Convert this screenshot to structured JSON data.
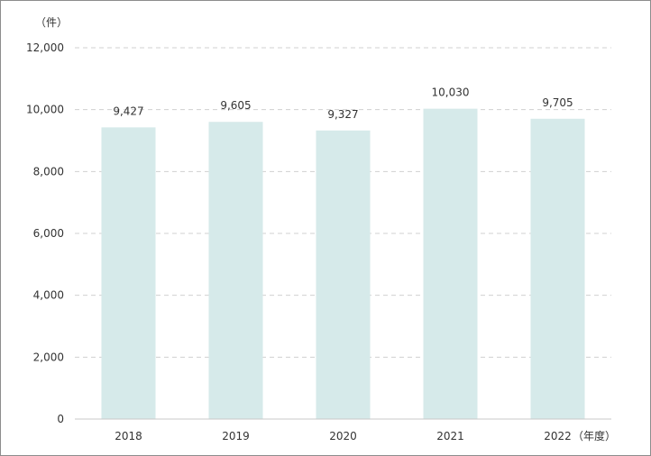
{
  "chart_data": {
    "type": "bar",
    "categories": [
      "2018",
      "2019",
      "2020",
      "2021",
      "2022"
    ],
    "values": [
      9427,
      9605,
      9327,
      10030,
      9705
    ],
    "value_labels": [
      "9,427",
      "9,605",
      "9,327",
      "10,030",
      "9,705"
    ],
    "y_ticks": [
      0,
      2000,
      4000,
      6000,
      8000,
      10000,
      12000
    ],
    "y_tick_labels": [
      "0",
      "2,000",
      "4,000",
      "6,000",
      "8,000",
      "10,000",
      "12,000"
    ],
    "ylim": [
      0,
      12000
    ],
    "y_unit": "（件）",
    "x_unit": "（年度）",
    "grid": true,
    "bar_color": "#d6eaea",
    "grid_color": "#d0d0d0"
  }
}
